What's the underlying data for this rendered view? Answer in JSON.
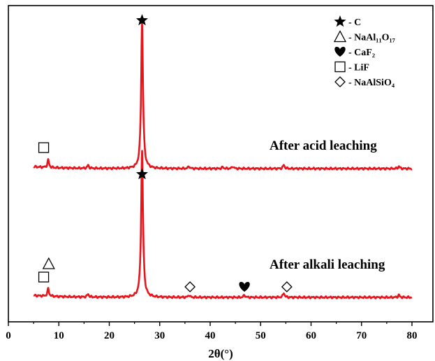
{
  "chart_data": {
    "type": "line",
    "xlabel": "2θ(°)",
    "ylabel": "",
    "xlim": [
      0,
      80
    ],
    "x_ticks": [
      "0",
      "10",
      "20",
      "30",
      "40",
      "50",
      "60",
      "70",
      "80"
    ],
    "grid": false,
    "line_color": "#e8141b",
    "legend": {
      "placement": "top-right",
      "entries": [
        {
          "symbol": "star",
          "label": "- C"
        },
        {
          "symbol": "triangle",
          "label": "- NaAl₁₁O₁₇"
        },
        {
          "symbol": "heart",
          "label": "- CaF₂"
        },
        {
          "symbol": "square",
          "label": "- LiF"
        },
        {
          "symbol": "diamond",
          "label": "- NaAlSiO₄"
        }
      ]
    },
    "series": [
      {
        "name": "After acid leaching",
        "peaks": [
          {
            "x": 7.9,
            "height": 0.05
          },
          {
            "x": 15.8,
            "height": 0.02
          },
          {
            "x": 26.5,
            "height": 0.95
          },
          {
            "x": 35.8,
            "height": 0.015
          },
          {
            "x": 42.5,
            "height": 0.01
          },
          {
            "x": 44.5,
            "height": 0.015
          },
          {
            "x": 54.6,
            "height": 0.025
          },
          {
            "x": 77.4,
            "height": 0.015
          }
        ],
        "markers": [
          {
            "symbol": "square",
            "x": 7.0
          },
          {
            "symbol": "star",
            "x": 26.5
          }
        ]
      },
      {
        "name": "After alkali leaching",
        "peaks": [
          {
            "x": 7.9,
            "height": 0.05
          },
          {
            "x": 15.8,
            "height": 0.02
          },
          {
            "x": 26.5,
            "height": 0.95
          },
          {
            "x": 35.8,
            "height": 0.015
          },
          {
            "x": 46.8,
            "height": 0.015
          },
          {
            "x": 54.6,
            "height": 0.03
          },
          {
            "x": 77.4,
            "height": 0.015
          }
        ],
        "markers": [
          {
            "symbol": "square",
            "x": 7.0
          },
          {
            "symbol": "triangle",
            "x": 8.0
          },
          {
            "symbol": "star",
            "x": 26.5
          },
          {
            "symbol": "diamond",
            "x": 36.0
          },
          {
            "symbol": "heart",
            "x": 46.8
          },
          {
            "symbol": "diamond",
            "x": 55.2
          }
        ]
      }
    ]
  }
}
